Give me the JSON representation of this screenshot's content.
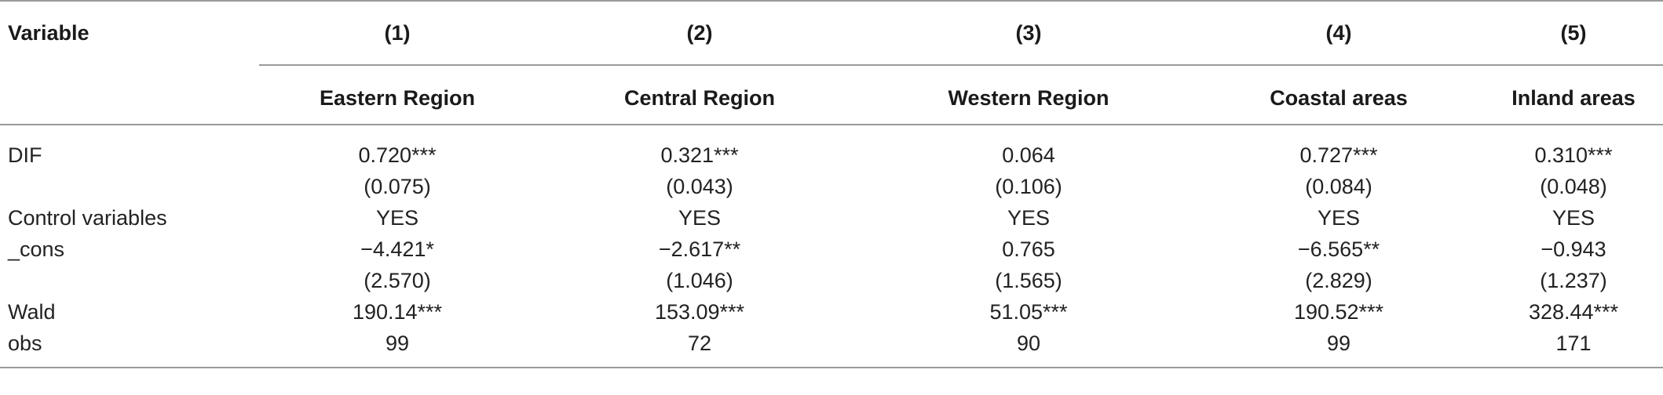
{
  "table": {
    "header": {
      "variable_label": "Variable",
      "numbers": [
        "(1)",
        "(2)",
        "(3)",
        "(4)",
        "(5)"
      ],
      "names": [
        "Eastern Region",
        "Central Region",
        "Western Region",
        "Coastal areas",
        "Inland areas"
      ]
    },
    "rows": [
      {
        "label": "DIF",
        "values": [
          "0.720***",
          "0.321***",
          "0.064",
          "0.727***",
          "0.310***"
        ],
        "se": [
          "(0.075)",
          "(0.043)",
          "(0.106)",
          "(0.084)",
          "(0.048)"
        ]
      },
      {
        "label": "Control variables",
        "values": [
          "YES",
          "YES",
          "YES",
          "YES",
          "YES"
        ]
      },
      {
        "label": "_cons",
        "values": [
          "−4.421*",
          "−2.617**",
          "0.765",
          "−6.565**",
          "−0.943"
        ],
        "se": [
          "(2.570)",
          "(1.046)",
          "(1.565)",
          "(2.829)",
          "(1.237)"
        ]
      },
      {
        "label": "Wald",
        "values": [
          "190.14***",
          "153.09***",
          "51.05***",
          "190.52***",
          "328.44***"
        ]
      },
      {
        "label": "obs",
        "values": [
          "99",
          "72",
          "90",
          "99",
          "171"
        ]
      }
    ]
  }
}
